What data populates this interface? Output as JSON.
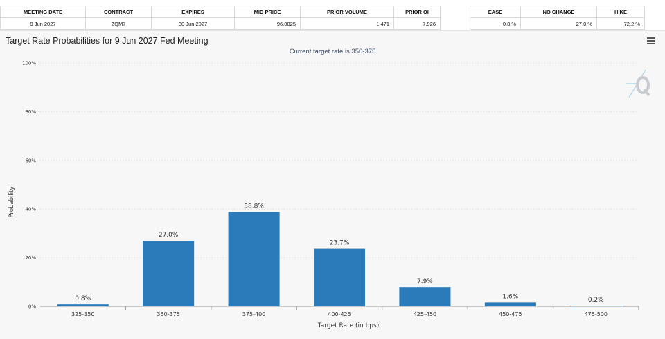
{
  "top_table": {
    "headers": [
      "MEETING DATE",
      "CONTRACT",
      "EXPIRES",
      "MID PRICE",
      "PRIOR VOLUME",
      "PRIOR OI"
    ],
    "values": [
      "9 Jun 2027",
      "ZQM7",
      "30 Jun 2027",
      "96.0825",
      "1,471",
      "7,926"
    ]
  },
  "prob_table": {
    "headers": [
      "EASE",
      "NO CHANGE",
      "HIKE"
    ],
    "values": [
      "0.8 %",
      "27.0 %",
      "72.2 %"
    ]
  },
  "chart": {
    "title": "Target Rate Probabilities for 9 Jun 2027 Fed Meeting",
    "subtitle": "Current target rate is 350-375",
    "menu_icon": "hamburger-menu-icon",
    "logo_icon": "q-logo-icon"
  },
  "chart_data": {
    "type": "bar",
    "categories": [
      "325-350",
      "350-375",
      "375-400",
      "400-425",
      "425-450",
      "450-475",
      "475-500"
    ],
    "values": [
      0.8,
      27.0,
      38.8,
      23.7,
      7.9,
      1.6,
      0.2
    ],
    "data_labels": [
      "0.8%",
      "27.0%",
      "38.8%",
      "23.7%",
      "7.9%",
      "1.6%",
      "0.2%"
    ],
    "xlabel": "Target Rate (in bps)",
    "ylabel": "Probability",
    "ylim": [
      0,
      100
    ],
    "yticks": [
      0,
      20,
      40,
      60,
      80,
      100
    ],
    "ytick_labels": [
      "0%",
      "20%",
      "40%",
      "60%",
      "80%",
      "100%"
    ],
    "bar_color": "#2b7bba",
    "grid": true,
    "legend": false
  }
}
